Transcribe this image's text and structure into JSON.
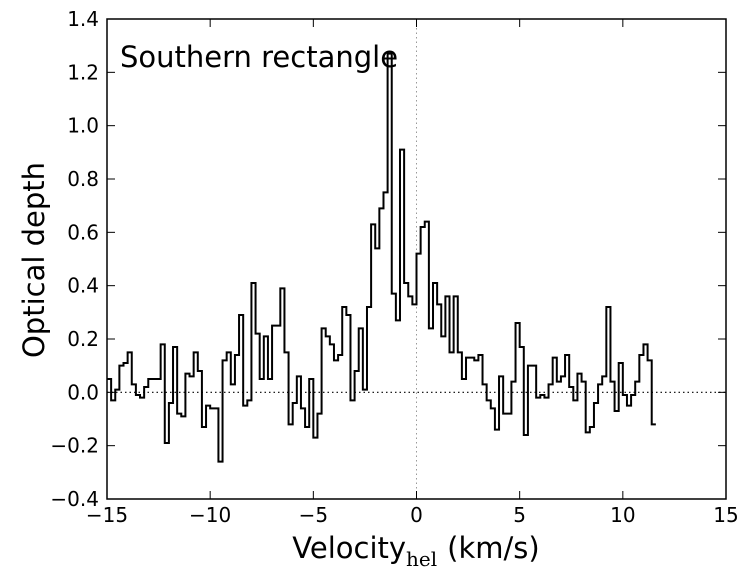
{
  "chart_data": {
    "type": "line",
    "style": "step",
    "title": "Southern rectangle",
    "xlabel": "Velocity",
    "xlabel_subscript": "hel",
    "xlabel_unit": "(km/s)",
    "ylabel": "Optical depth",
    "xlim": [
      -15,
      15
    ],
    "ylim": [
      -0.4,
      1.4
    ],
    "xticks": [
      -15,
      -10,
      -5,
      0,
      5,
      10,
      15
    ],
    "xtick_labels": [
      "−15",
      "−10",
      "−5",
      "0",
      "5",
      "10",
      "15"
    ],
    "yticks": [
      -0.4,
      -0.2,
      0.0,
      0.2,
      0.4,
      0.6,
      0.8,
      1.0,
      1.2,
      1.4
    ],
    "ytick_labels": [
      "−0.4",
      "−0.2",
      "0.0",
      "0.2",
      "0.4",
      "0.6",
      "0.8",
      "1.0",
      "1.2",
      "1.4"
    ],
    "reference_lines": {
      "y": 0,
      "x": 0
    },
    "bin_width": 0.2,
    "x_start": -15.0,
    "series": [
      {
        "name": "Optical depth",
        "values": [
          0.05,
          -0.03,
          0.01,
          0.1,
          0.11,
          0.15,
          0.03,
          -0.01,
          -0.02,
          0.02,
          0.05,
          0.05,
          0.05,
          0.18,
          -0.19,
          -0.04,
          0.17,
          -0.08,
          -0.09,
          0.07,
          0.06,
          0.15,
          0.08,
          -0.13,
          -0.05,
          -0.06,
          -0.06,
          -0.26,
          0.12,
          0.15,
          0.03,
          0.14,
          0.29,
          -0.05,
          -0.03,
          0.41,
          0.22,
          0.05,
          0.21,
          0.05,
          0.25,
          0.25,
          0.39,
          0.15,
          -0.12,
          -0.04,
          0.06,
          -0.06,
          -0.13,
          0.05,
          -0.17,
          -0.08,
          0.24,
          0.21,
          0.18,
          0.12,
          0.14,
          0.32,
          0.29,
          -0.03,
          0.08,
          0.24,
          0.01,
          0.32,
          0.63,
          0.54,
          0.69,
          0.75,
          1.27,
          0.37,
          0.27,
          0.91,
          0.41,
          0.36,
          0.33,
          0.52,
          0.62,
          0.64,
          0.24,
          0.41,
          0.33,
          0.21,
          0.36,
          0.15,
          0.36,
          0.15,
          0.05,
          0.13,
          0.13,
          0.12,
          0.14,
          0.03,
          -0.03,
          -0.06,
          -0.14,
          0.06,
          -0.08,
          -0.08,
          0.04,
          0.26,
          0.17,
          -0.16,
          0.1,
          0.1,
          -0.02,
          -0.01,
          -0.02,
          0.03,
          0.13,
          0.04,
          0.06,
          0.14,
          0.02,
          -0.03,
          0.07,
          0.04,
          -0.15,
          -0.13,
          -0.04,
          0.03,
          0.06,
          0.32,
          0.04,
          -0.07,
          0.11,
          -0.01,
          -0.05,
          -0.01,
          0.04,
          0.14,
          0.18,
          0.12,
          -0.12
        ]
      }
    ]
  }
}
